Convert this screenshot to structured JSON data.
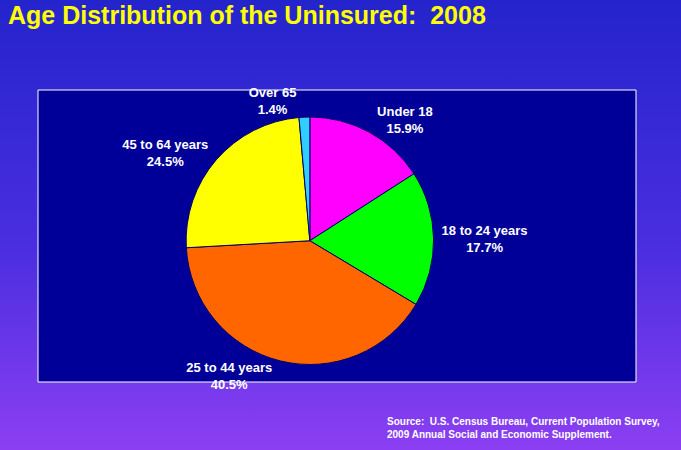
{
  "chart_data": {
    "type": "pie",
    "title": "Age Distribution of the Uninsured:  2008",
    "categories": [
      "Under 18",
      "18 to 24 years",
      "25 to 44 years",
      "45 to 64 years",
      "Over 65"
    ],
    "values": [
      15.9,
      17.7,
      40.5,
      24.5,
      1.4
    ],
    "value_labels": [
      "15.9%",
      "17.7%",
      "40.5%",
      "24.5%",
      "1.4%"
    ],
    "colors": [
      "#ff00ff",
      "#00ff00",
      "#ff6600",
      "#ffff00",
      "#33ccff"
    ],
    "data_labels": true,
    "annotations": [
      "Source:  U.S. Census Bureau, Current Population Survey,",
      "2009 Annual Social and Economic Supplement."
    ]
  }
}
